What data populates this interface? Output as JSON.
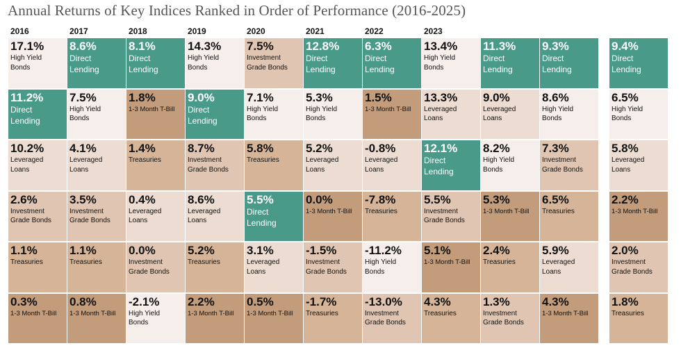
{
  "title": "Annual Returns of Key Indices Ranked in Order of Performance (2016-2025)",
  "colors": {
    "Direct Lending": "#4a9a89",
    "High Yield Bonds": "#f6eeea",
    "Leveraged Loans": "#ecdcd1",
    "Investment Grade Bonds": "#e0c6b2",
    "Treasuries": "#d5b497",
    "1-3 Month T-Bill": "#c29c7b"
  },
  "chart_data": {
    "type": "table",
    "title": "Annual Returns of Key Indices Ranked in Order of Performance (2016-2025)",
    "columns": [
      {
        "year": "2016",
        "cells": [
          {
            "value": "17.1%",
            "asset": "High Yield Bonds",
            "label": "High Yield\nBonds"
          },
          {
            "value": "11.2%",
            "asset": "Direct Lending",
            "label": "Direct\nLending"
          },
          {
            "value": "10.2%",
            "asset": "Leveraged Loans",
            "label": "Leveraged\nLoans"
          },
          {
            "value": "2.6%",
            "asset": "Investment Grade Bonds",
            "label": "Investment\nGrade Bonds"
          },
          {
            "value": "1.1%",
            "asset": "Treasuries",
            "label": "Treasuries"
          },
          {
            "value": "0.3%",
            "asset": "1-3 Month T-Bill",
            "label": "1-3 Month  T-Bill"
          }
        ]
      },
      {
        "year": "2017",
        "cells": [
          {
            "value": "8.6%",
            "asset": "Direct Lending",
            "label": "Direct\nLending"
          },
          {
            "value": "7.5%",
            "asset": "High Yield Bonds",
            "label": "High Yield\nBonds"
          },
          {
            "value": "4.1%",
            "asset": "Leveraged Loans",
            "label": "Leveraged\nLoans"
          },
          {
            "value": "3.5%",
            "asset": "Investment Grade Bonds",
            "label": "Investment\nGrade Bonds"
          },
          {
            "value": "1.1%",
            "asset": "Treasuries",
            "label": "Treasuries"
          },
          {
            "value": "0.8%",
            "asset": "1-3 Month T-Bill",
            "label": "1-3 Month  T-Bill"
          }
        ]
      },
      {
        "year": "2018",
        "cells": [
          {
            "value": "8.1%",
            "asset": "Direct Lending",
            "label": "Direct\nLending"
          },
          {
            "value": "1.8%",
            "asset": "1-3 Month T-Bill",
            "label": "1-3 Month  T-Bill"
          },
          {
            "value": "1.4%",
            "asset": "Treasuries",
            "label": "Treasuries"
          },
          {
            "value": "0.4%",
            "asset": "Leveraged Loans",
            "label": "Leveraged\nLoans"
          },
          {
            "value": "0.0%",
            "asset": "Investment Grade Bonds",
            "label": "Investment\nGrade Bonds"
          },
          {
            "value": "-2.1%",
            "asset": "High Yield Bonds",
            "label": "High Yield\nBonds"
          }
        ]
      },
      {
        "year": "2019",
        "cells": [
          {
            "value": "14.3%",
            "asset": "High Yield Bonds",
            "label": "High Yield\nBonds"
          },
          {
            "value": "9.0%",
            "asset": "Direct Lending",
            "label": "Direct\nLending"
          },
          {
            "value": "8.7%",
            "asset": "Investment Grade Bonds",
            "label": "Investment\nGrade Bonds"
          },
          {
            "value": "8.6%",
            "asset": "Leveraged Loans",
            "label": "Leveraged\nLoans"
          },
          {
            "value": "5.2%",
            "asset": "Treasuries",
            "label": "Treasuries"
          },
          {
            "value": "2.2%",
            "asset": "1-3 Month T-Bill",
            "label": "1-3 Month  T-Bill"
          }
        ]
      },
      {
        "year": "2020",
        "cells": [
          {
            "value": "7.5%",
            "asset": "Investment Grade Bonds",
            "label": "Investment\nGrade Bonds"
          },
          {
            "value": "7.1%",
            "asset": "High Yield Bonds",
            "label": "High Yield\nBonds"
          },
          {
            "value": "5.8%",
            "asset": "Treasuries",
            "label": "Treasuries"
          },
          {
            "value": "5.5%",
            "asset": "Direct Lending",
            "label": "Direct\nLending"
          },
          {
            "value": "3.1%",
            "asset": "Leveraged Loans",
            "label": "Leveraged\nLoans"
          },
          {
            "value": "0.5%",
            "asset": "1-3 Month T-Bill",
            "label": "1-3 Month  T-Bill"
          }
        ]
      },
      {
        "year": "2021",
        "cells": [
          {
            "value": "12.8%",
            "asset": "Direct Lending",
            "label": "Direct\nLending"
          },
          {
            "value": "5.3%",
            "asset": "High Yield Bonds",
            "label": "High Yield\nBonds"
          },
          {
            "value": "5.2%",
            "asset": "Leveraged Loans",
            "label": "Leveraged\nLoans"
          },
          {
            "value": "0.0%",
            "asset": "1-3 Month T-Bill",
            "label": "1-3 Month  T-Bill"
          },
          {
            "value": "-1.5%",
            "asset": "Investment Grade Bonds",
            "label": "Investment\nGrade Bonds"
          },
          {
            "value": "-1.7%",
            "asset": "Treasuries",
            "label": "Treasuries"
          }
        ]
      },
      {
        "year": "2022",
        "cells": [
          {
            "value": "6.3%",
            "asset": "Direct Lending",
            "label": "Direct\nLending"
          },
          {
            "value": "1.5%",
            "asset": "1-3 Month T-Bill",
            "label": "1-3 Month  T-Bill"
          },
          {
            "value": "-0.8%",
            "asset": "Leveraged Loans",
            "label": "Leveraged\nLoans"
          },
          {
            "value": "-7.8%",
            "asset": "Treasuries",
            "label": "Treasuries"
          },
          {
            "value": "-11.2%",
            "asset": "High Yield Bonds",
            "label": "High Yield\nBonds"
          },
          {
            "value": "-13.0%",
            "asset": "Investment Grade Bonds",
            "label": "Investment\nGrade Bonds"
          }
        ]
      },
      {
        "year": "2023",
        "cells": [
          {
            "value": "13.4%",
            "asset": "High Yield Bonds",
            "label": "High Yield\nBonds"
          },
          {
            "value": "13.3%",
            "asset": "Leveraged Loans",
            "label": "Leveraged\nLoans"
          },
          {
            "value": "12.1%",
            "asset": "Direct Lending",
            "label": "Direct\nLending"
          },
          {
            "value": "5.5%",
            "asset": "Investment Grade Bonds",
            "label": "Investment\nGrade Bonds"
          },
          {
            "value": "5.1%",
            "asset": "1-3 Month T-Bill",
            "label": "1-3 Month  T-Bill"
          },
          {
            "value": "4.3%",
            "asset": "Treasuries",
            "label": "Treasuries"
          }
        ]
      },
      {
        "year": "",
        "cells": [
          {
            "value": "11.3%",
            "asset": "Direct Lending",
            "label": "Direct\nLending"
          },
          {
            "value": "9.0%",
            "asset": "Leveraged Loans",
            "label": "Leveraged\nLoans"
          },
          {
            "value": "8.2%",
            "asset": "High Yield Bonds",
            "label": "High Yield\nBonds"
          },
          {
            "value": "5.3%",
            "asset": "1-3 Month T-Bill",
            "label": "1-3 Month  T-Bill"
          },
          {
            "value": "2.4%",
            "asset": "Treasuries",
            "label": "Treasuries"
          },
          {
            "value": "1.3%",
            "asset": "Investment Grade Bonds",
            "label": "Investment\nGrade Bonds"
          }
        ]
      },
      {
        "year": "",
        "cells": [
          {
            "value": "9.3%",
            "asset": "Direct Lending",
            "label": "Direct\nLending"
          },
          {
            "value": "8.6%",
            "asset": "High Yield Bonds",
            "label": "High Yield\nBonds"
          },
          {
            "value": "7.3%",
            "asset": "Investment Grade Bonds",
            "label": "Investment\nGrade Bonds"
          },
          {
            "value": "6.5%",
            "asset": "Treasuries",
            "label": "Treasuries"
          },
          {
            "value": "5.9%",
            "asset": "Leveraged Loans",
            "label": "Leveraged\nLoans"
          },
          {
            "value": "4.3%",
            "asset": "1-3 Month T-Bill",
            "label": "1-3 Month  T-Bill"
          }
        ]
      },
      {
        "year": "",
        "cells": [
          {
            "value": "9.4%",
            "asset": "Direct Lending",
            "label": "Direct\nLending"
          },
          {
            "value": "6.5%",
            "asset": "High Yield Bonds",
            "label": "High Yield\nBonds"
          },
          {
            "value": "5.8%",
            "asset": "Leveraged Loans",
            "label": "Leveraged\nLoans"
          },
          {
            "value": "2.2%",
            "asset": "1-3 Month T-Bill",
            "label": "1-3 Month  T-Bill"
          },
          {
            "value": "2.0%",
            "asset": "Investment Grade Bonds",
            "label": "Investment\nGrade Bonds"
          },
          {
            "value": "1.8%",
            "asset": "Treasuries",
            "label": "Treasuries"
          }
        ]
      }
    ]
  }
}
